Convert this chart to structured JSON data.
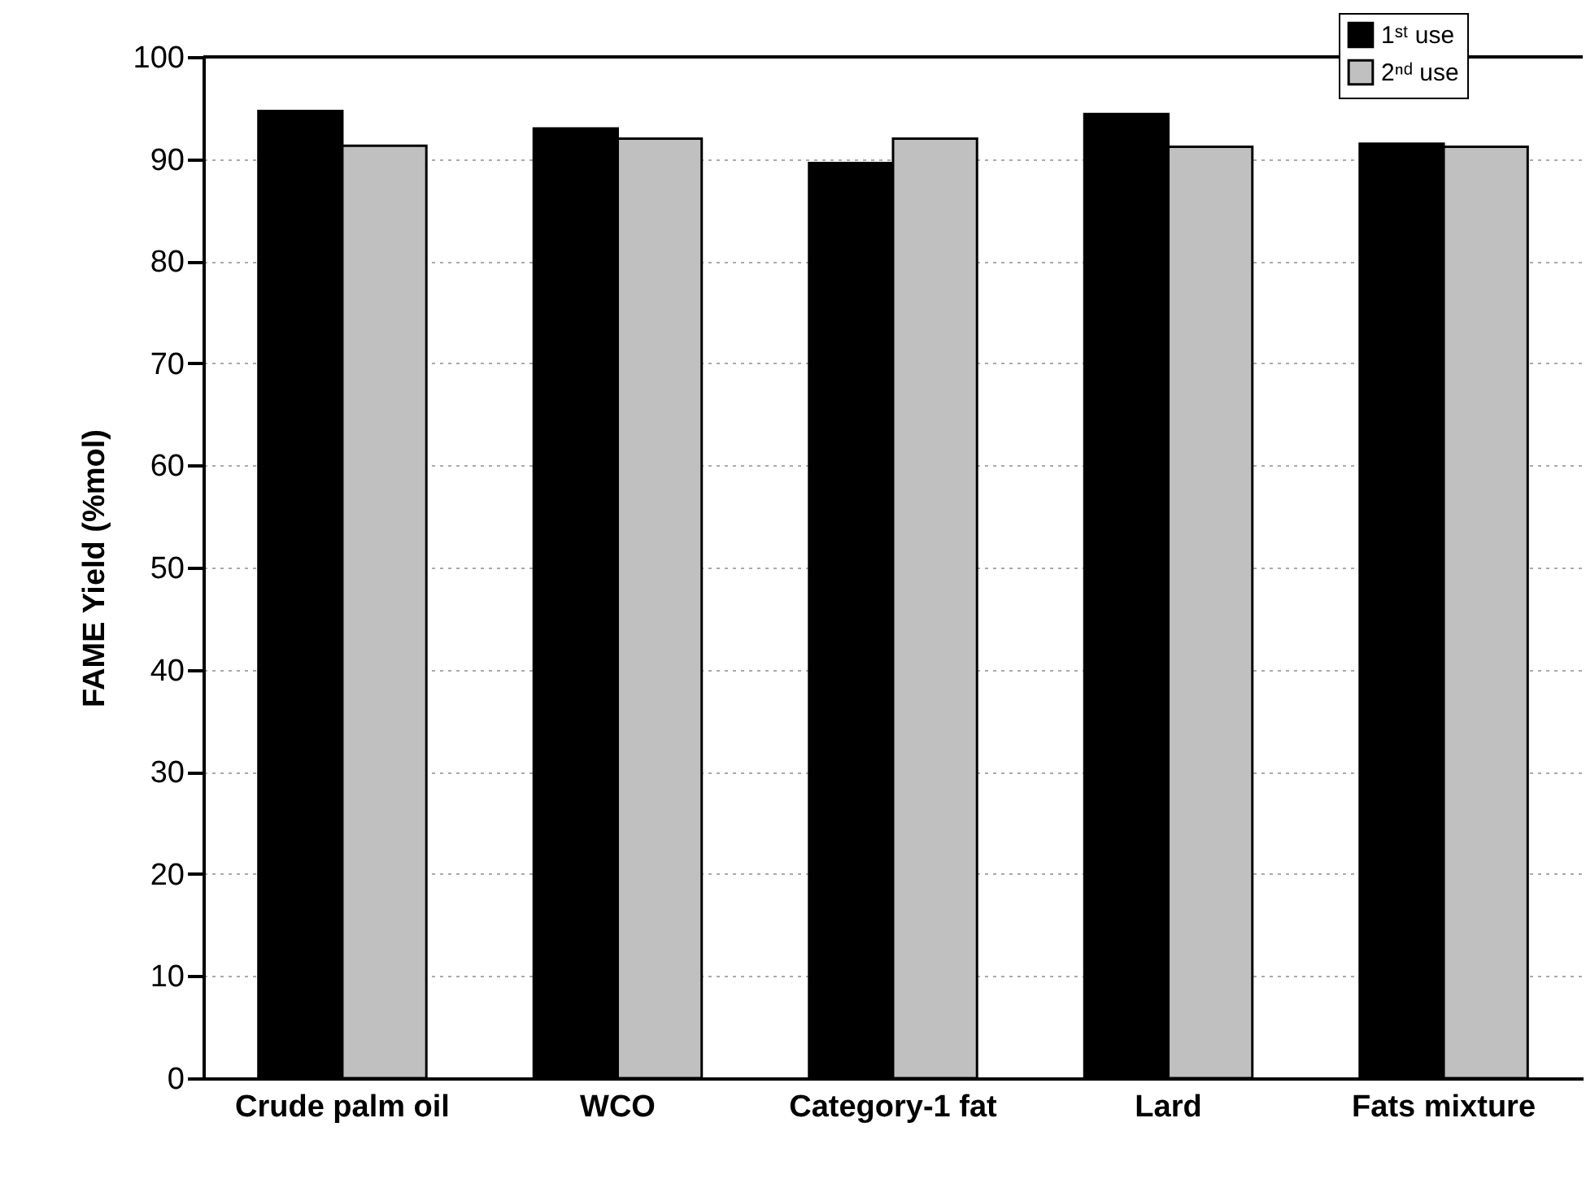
{
  "chart_data": {
    "type": "bar",
    "ylabel": "FAME Yield (%mol)",
    "categories": [
      "Crude palm oil",
      "WCO",
      "Category-1 fat",
      "Lard",
      "Fats mixture"
    ],
    "series": [
      {
        "name": "1ˢᵗ use",
        "color": "#000000",
        "values": [
          94.7,
          93.0,
          89.6,
          94.4,
          91.5
        ]
      },
      {
        "name": "2ⁿᵈ use",
        "color": "#c0c0c0",
        "values": [
          91.3,
          92.0,
          92.0,
          91.2,
          91.2
        ]
      }
    ],
    "ylim": [
      0,
      100
    ],
    "yticks": [
      0,
      10,
      20,
      30,
      40,
      50,
      60,
      70,
      80,
      90,
      100
    ],
    "grid": "y",
    "legend": "top right"
  }
}
